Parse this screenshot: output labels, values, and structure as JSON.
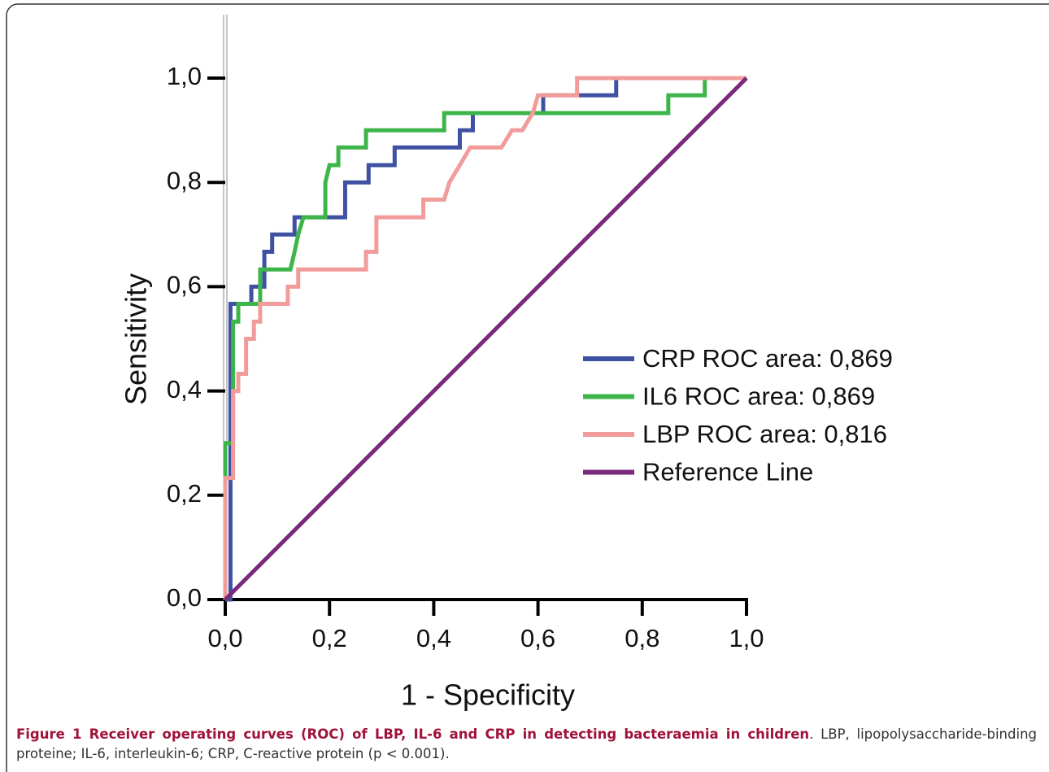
{
  "chart_data": {
    "type": "line",
    "xlabel": "1 - Specificity",
    "ylabel": "Sensitivity",
    "xlim": [
      0,
      1
    ],
    "ylim": [
      0,
      1
    ],
    "xticks": [
      {
        "value": 0,
        "label": "0,0"
      },
      {
        "value": 0.2,
        "label": "0,2"
      },
      {
        "value": 0.4,
        "label": "0,4"
      },
      {
        "value": 0.6,
        "label": "0,6"
      },
      {
        "value": 0.8,
        "label": "0,8"
      },
      {
        "value": 1,
        "label": "1,0"
      }
    ],
    "yticks": [
      {
        "value": 0,
        "label": "0,0"
      },
      {
        "value": 0.2,
        "label": "0,2"
      },
      {
        "value": 0.4,
        "label": "0,4"
      },
      {
        "value": 0.6,
        "label": "0,6"
      },
      {
        "value": 0.8,
        "label": "0,8"
      },
      {
        "value": 1,
        "label": "1,0"
      }
    ],
    "series": [
      {
        "name": "CRP ROC area: 0,869",
        "color": "#3f51a3",
        "x": [
          0,
          0.01,
          0.01,
          0.05,
          0.05,
          0.075,
          0.075,
          0.09,
          0.09,
          0.133,
          0.133,
          0.23,
          0.23,
          0.275,
          0.275,
          0.325,
          0.325,
          0.45,
          0.45,
          0.475,
          0.475,
          0.61,
          0.61,
          0.75,
          0.75,
          1
        ],
        "values": [
          0,
          0,
          0.567,
          0.567,
          0.6,
          0.6,
          0.667,
          0.667,
          0.7,
          0.7,
          0.733,
          0.733,
          0.8,
          0.8,
          0.833,
          0.833,
          0.867,
          0.867,
          0.9,
          0.9,
          0.933,
          0.933,
          0.967,
          0.967,
          1,
          1
        ]
      },
      {
        "name": "IL6 ROC area: 0,869",
        "color": "#3db54a",
        "x": [
          0,
          0,
          0.015,
          0.015,
          0.025,
          0.025,
          0.067,
          0.067,
          0.125,
          0.133,
          0.14,
          0.15,
          0.192,
          0.192,
          0.2,
          0.217,
          0.217,
          0.27,
          0.27,
          0.42,
          0.42,
          0.85,
          0.85,
          0.92,
          0.92,
          1
        ],
        "values": [
          0,
          0.3,
          0.3,
          0.533,
          0.533,
          0.567,
          0.567,
          0.633,
          0.633,
          0.667,
          0.7,
          0.733,
          0.733,
          0.8,
          0.833,
          0.833,
          0.867,
          0.867,
          0.9,
          0.9,
          0.933,
          0.933,
          0.967,
          0.967,
          1,
          1
        ]
      },
      {
        "name": "LBP ROC area: 0,816",
        "color": "#f29b9b",
        "x": [
          0,
          0,
          0.015,
          0.015,
          0.025,
          0.025,
          0.04,
          0.04,
          0.055,
          0.055,
          0.067,
          0.067,
          0.12,
          0.12,
          0.14,
          0.14,
          0.27,
          0.27,
          0.29,
          0.29,
          0.38,
          0.38,
          0.42,
          0.43,
          0.45,
          0.47,
          0.53,
          0.55,
          0.57,
          0.59,
          0.6,
          0.675,
          0.675,
          1
        ],
        "values": [
          0,
          0.233,
          0.233,
          0.4,
          0.4,
          0.433,
          0.433,
          0.5,
          0.5,
          0.533,
          0.533,
          0.567,
          0.567,
          0.6,
          0.6,
          0.633,
          0.633,
          0.667,
          0.667,
          0.733,
          0.733,
          0.767,
          0.767,
          0.8,
          0.833,
          0.867,
          0.867,
          0.9,
          0.9,
          0.933,
          0.967,
          0.967,
          1,
          1
        ]
      },
      {
        "name": "Reference Line",
        "color": "#7b2a7b",
        "x": [
          0,
          1
        ],
        "values": [
          0,
          1
        ]
      }
    ]
  },
  "caption": {
    "title": "Figure 1 Receiver operating curves (ROC) of LBP, IL-6 and CRP in detecting bacteraemia in children",
    "text": ". LBP, lipopolysaccharide-binding proteine; IL-6, interleukin-6; CRP, C-reactive protein (p < 0.001)."
  }
}
